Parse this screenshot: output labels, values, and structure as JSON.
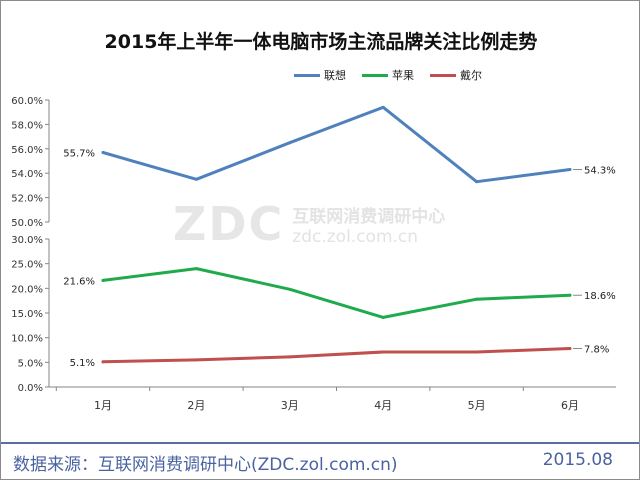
{
  "chart_data": {
    "type": "line",
    "title": "2015年上半年一体电脑市场主流品牌关注比例走势",
    "categories": [
      "1月",
      "2月",
      "3月",
      "4月",
      "5月",
      "6月"
    ],
    "axis_break": true,
    "upper_axis_ticks": [
      "60.0%",
      "58.0%",
      "56.0%",
      "54.0%",
      "52.0%",
      "50.0%"
    ],
    "upper_ylim": [
      50,
      60
    ],
    "lower_axis_ticks": [
      "30.0%",
      "25.0%",
      "20.0%",
      "15.0%",
      "10.0%",
      "5.0%",
      "0.0%"
    ],
    "lower_ylim": [
      0,
      30
    ],
    "legend_position": "top-right",
    "grid": false,
    "series": [
      {
        "name": "联想",
        "color": "#4f81bd",
        "axis": "upper",
        "values": [
          55.7,
          53.5,
          56.5,
          59.4,
          53.3,
          54.3
        ],
        "start_label": "55.7%",
        "end_label": "54.3%"
      },
      {
        "name": "苹果",
        "color": "#1faa4c",
        "axis": "lower",
        "values": [
          21.6,
          24.0,
          19.8,
          14.1,
          17.8,
          18.6
        ],
        "start_label": "21.6%",
        "end_label": "18.6%"
      },
      {
        "name": "戴尔",
        "color": "#c0504d",
        "axis": "lower",
        "values": [
          5.1,
          5.5,
          6.1,
          7.1,
          7.1,
          7.8
        ],
        "start_label": "5.1%",
        "end_label": "7.8%"
      }
    ]
  },
  "watermark": {
    "logo": "ZDC",
    "cn": "互联网消费调研中心",
    "url": "zdc.zol.com.cn"
  },
  "footer": {
    "source": "数据来源：互联网消费调研中心(ZDC.zol.com.cn)",
    "date": "2015.08"
  }
}
